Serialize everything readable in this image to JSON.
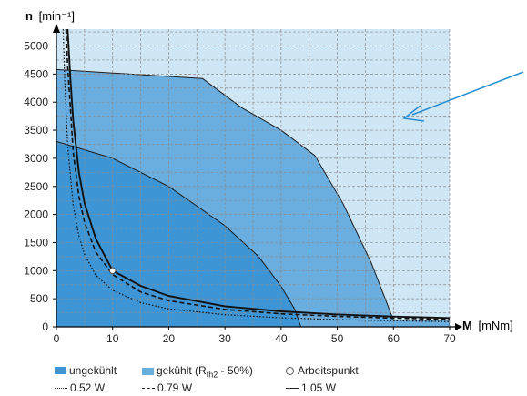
{
  "chart_data": {
    "type": "area",
    "xlabel_symbol": "M",
    "xlabel_unit": "[mNm]",
    "ylabel_symbol": "n",
    "ylabel_unit": "[min⁻¹]",
    "xlim": [
      0,
      70
    ],
    "ylim": [
      0,
      5300
    ],
    "x_ticks": [
      0,
      10,
      20,
      30,
      40,
      50,
      60,
      70
    ],
    "y_ticks": [
      0,
      500,
      1000,
      1500,
      2000,
      2500,
      3000,
      3500,
      4000,
      4500,
      5000
    ],
    "grid": true,
    "colors": {
      "background": "#cfe6f4",
      "cooled": "#6aaee0",
      "uncooled": "#3d95d6",
      "arrow": "#2a8fd0"
    },
    "regions": [
      {
        "name": "gekühlt (Rth2 - 50%)",
        "points": [
          [
            0,
            4580
          ],
          [
            26,
            4420
          ],
          [
            33,
            3900
          ],
          [
            40,
            3500
          ],
          [
            46,
            3050
          ],
          [
            51,
            2200
          ],
          [
            56,
            1150
          ],
          [
            60,
            120
          ],
          [
            70,
            120
          ],
          [
            70,
            0
          ],
          [
            0,
            0
          ]
        ]
      },
      {
        "name": "ungekühlt",
        "points": [
          [
            0,
            3300
          ],
          [
            10,
            3000
          ],
          [
            20,
            2500
          ],
          [
            30,
            1800
          ],
          [
            36,
            1250
          ],
          [
            40,
            720
          ],
          [
            42.5,
            300
          ],
          [
            43.5,
            0
          ],
          [
            0,
            0
          ]
        ]
      }
    ],
    "series": [
      {
        "name": "0.52 W",
        "style": "dotted",
        "points": [
          [
            1.2,
            5300
          ],
          [
            1.5,
            4300
          ],
          [
            2,
            3230
          ],
          [
            3,
            2150
          ],
          [
            4,
            1620
          ],
          [
            5,
            1290
          ],
          [
            7,
            920
          ],
          [
            10,
            650
          ],
          [
            15,
            430
          ],
          [
            20,
            320
          ],
          [
            30,
            215
          ],
          [
            40,
            160
          ],
          [
            50,
            130
          ],
          [
            60,
            108
          ],
          [
            70,
            92
          ]
        ]
      },
      {
        "name": "0.79 W",
        "style": "dashed",
        "points": [
          [
            1.7,
            5300
          ],
          [
            2,
            4650
          ],
          [
            3,
            3100
          ],
          [
            4,
            2320
          ],
          [
            5,
            1860
          ],
          [
            7,
            1330
          ],
          [
            10,
            930
          ],
          [
            15,
            620
          ],
          [
            20,
            465
          ],
          [
            30,
            310
          ],
          [
            40,
            232
          ],
          [
            50,
            186
          ],
          [
            60,
            155
          ],
          [
            70,
            133
          ]
        ]
      },
      {
        "name": "1.05 W",
        "style": "solid",
        "points": [
          [
            2.0,
            5300
          ],
          [
            2.5,
            4400
          ],
          [
            3,
            3660
          ],
          [
            4,
            2750
          ],
          [
            5,
            2200
          ],
          [
            7,
            1570
          ],
          [
            10,
            1000
          ],
          [
            15,
            730
          ],
          [
            20,
            550
          ],
          [
            30,
            366
          ],
          [
            40,
            275
          ],
          [
            50,
            220
          ],
          [
            60,
            183
          ],
          [
            70,
            157
          ]
        ]
      }
    ],
    "operating_point": {
      "name": "Arbeitspunkt",
      "x": 10,
      "y": 1000
    }
  },
  "legend": {
    "uncooled": "ungekühlt",
    "cooled_prefix": "gekühlt (R",
    "cooled_sub": "th2",
    "cooled_suffix": " - 50%)",
    "operating_point": "Arbeitspunkt",
    "line_052": "0.52 W",
    "line_079": "0.79 W",
    "line_105": "1.05 W"
  }
}
